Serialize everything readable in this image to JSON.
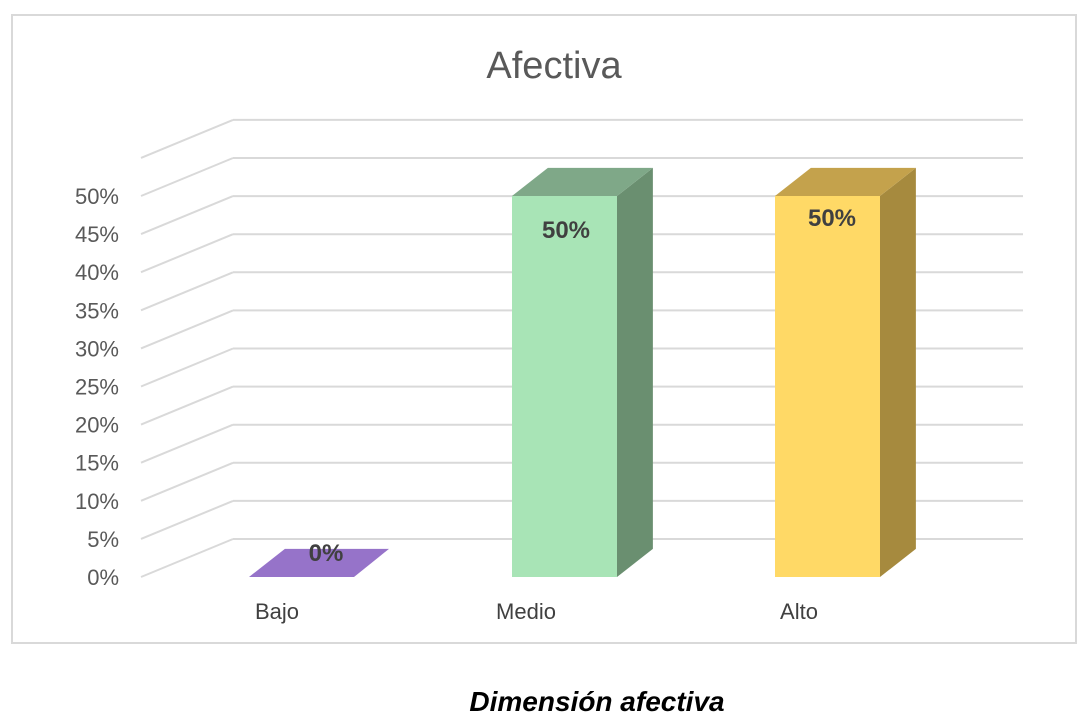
{
  "chart_data": {
    "type": "bar",
    "title": "Afectiva",
    "categories": [
      "Bajo",
      "Medio",
      "Alto"
    ],
    "values": [
      0,
      50,
      50
    ],
    "data_labels": [
      "0%",
      "50%",
      "50%"
    ],
    "ylim": [
      0,
      50
    ],
    "yticks": [
      "0%",
      "5%",
      "10%",
      "15%",
      "20%",
      "25%",
      "30%",
      "35%",
      "40%",
      "45%",
      "50%"
    ],
    "three_d": true,
    "grid": true,
    "legend": "none",
    "colors": {
      "Bajo": {
        "front": "#a68bd6",
        "side": "#7d63a8",
        "top": "#9673c9"
      },
      "Medio": {
        "front": "#a8e4b6",
        "side": "#6a8f70",
        "top": "#7fa888"
      },
      "Alto": {
        "front": "#ffd966",
        "side": "#a68a3e",
        "top": "#c4a24c"
      }
    }
  },
  "caption": "Dimensión afectiva"
}
